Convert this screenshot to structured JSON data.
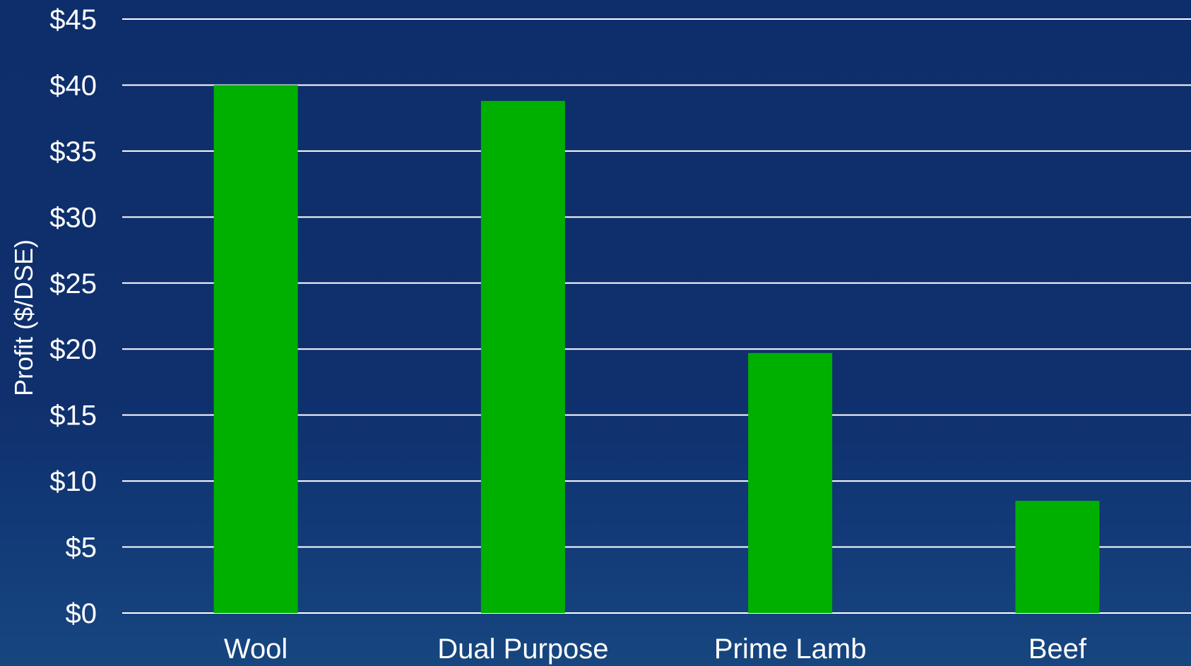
{
  "chart_data": {
    "type": "bar",
    "title": "",
    "xlabel": "",
    "ylabel": "Profit ($/DSE)",
    "categories": [
      "Wool",
      "Dual Purpose",
      "Prime Lamb",
      "Beef"
    ],
    "values": [
      40,
      38.8,
      19.7,
      8.5
    ],
    "ylim": [
      0,
      45
    ],
    "yticks": [
      0,
      5,
      10,
      15,
      20,
      25,
      30,
      35,
      40,
      45
    ],
    "ytick_labels": [
      "$0",
      "$5",
      "$10",
      "$15",
      "$20",
      "$25",
      "$30",
      "$35",
      "$40",
      "$45"
    ],
    "grid": true,
    "legend": "none",
    "colors": {
      "bar": "#00b000",
      "background": "#0e2d6a",
      "grid": "#ffffff",
      "text": "#ffffff"
    }
  }
}
